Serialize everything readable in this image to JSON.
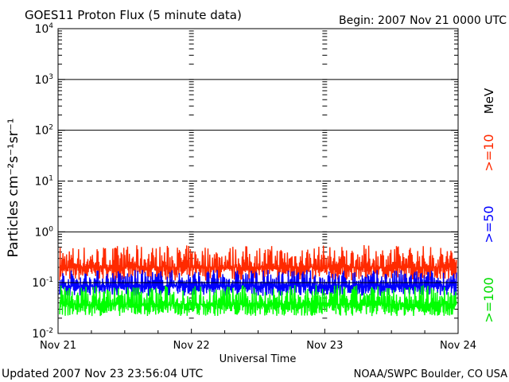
{
  "header": {
    "title": "GOES11 Proton Flux (5 minute data)",
    "begin": "Begin: 2007 Nov 21 0000 UTC"
  },
  "footer": {
    "updated": "Updated 2007 Nov 23 23:56:04 UTC",
    "credit": "NOAA/SWPC Boulder, CO USA"
  },
  "chart_data": {
    "type": "line",
    "title": "GOES11 Proton Flux (5 minute data)",
    "xlabel": "Universal Time",
    "ylabel": "Particles cm⁻²s⁻¹sr⁻¹",
    "y_scale": "log",
    "ylim": [
      0.01,
      10000
    ],
    "y_ticks": [
      {
        "value": 10000,
        "base": "10",
        "exp": "4"
      },
      {
        "value": 1000,
        "base": "10",
        "exp": "3"
      },
      {
        "value": 100,
        "base": "10",
        "exp": "2"
      },
      {
        "value": 10,
        "base": "10",
        "exp": "1"
      },
      {
        "value": 1,
        "base": "10",
        "exp": "0"
      },
      {
        "value": 0.1,
        "base": "10",
        "exp": "-1"
      },
      {
        "value": 0.01,
        "base": "10",
        "exp": "-2"
      }
    ],
    "x_range": [
      "2007-11-21T00:00",
      "2007-11-24T00:00"
    ],
    "x_ticks": [
      "Nov 21",
      "Nov 22",
      "Nov 23",
      "Nov 24"
    ],
    "reference_lines": [
      {
        "value": 1000,
        "style": "solid"
      },
      {
        "value": 100,
        "style": "solid"
      },
      {
        "value": 10,
        "style": "dashed"
      },
      {
        "value": 1,
        "style": "solid"
      },
      {
        "value": 0.1,
        "style": "solid"
      }
    ],
    "energy_unit": "MeV",
    "series": [
      {
        "name": ">=10",
        "color": "#ff2a00",
        "typical_range": [
          0.11,
          0.55
        ]
      },
      {
        "name": ">=50",
        "color": "#0000ff",
        "typical_range": [
          0.055,
          0.18
        ]
      },
      {
        "name": ">=100",
        "color": "#00ff00",
        "typical_range": [
          0.022,
          0.09
        ]
      }
    ]
  }
}
